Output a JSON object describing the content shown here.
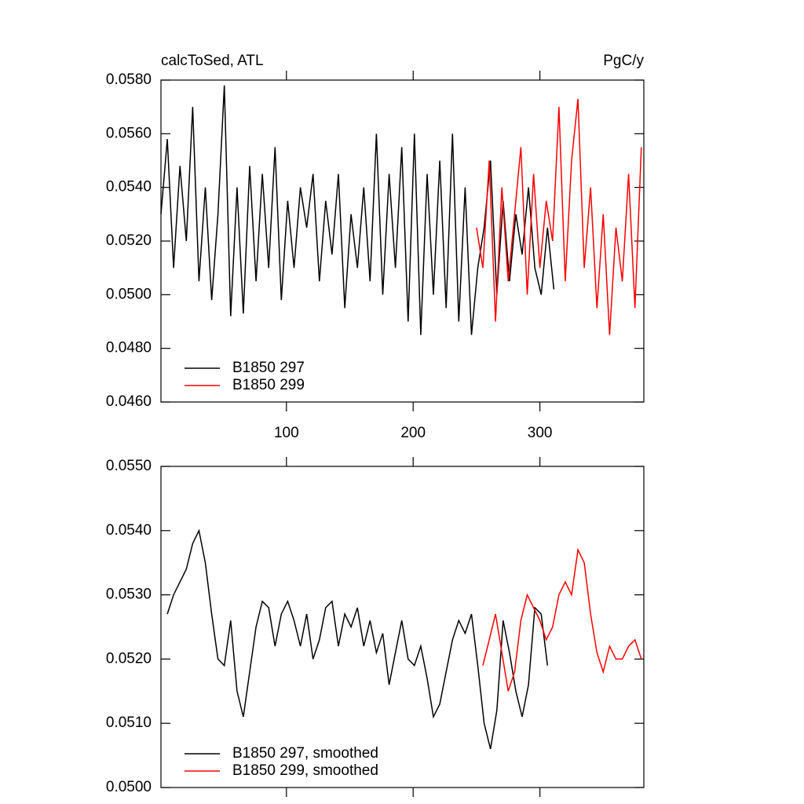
{
  "chart_data": [
    {
      "type": "line",
      "title": "calcToSed, ATL",
      "unit_label": "PgC/y",
      "xlim": [
        1,
        382
      ],
      "xticks": [
        100,
        200,
        300
      ],
      "show_xtick_labels": true,
      "ylim": [
        0.046,
        0.058
      ],
      "yticks": [
        {
          "value": 0.046,
          "label": "0.0460"
        },
        {
          "value": 0.048,
          "label": "0.0480"
        },
        {
          "value": 0.05,
          "label": "0.0500"
        },
        {
          "value": 0.052,
          "label": "0.0520"
        },
        {
          "value": 0.054,
          "label": "0.0540"
        },
        {
          "value": 0.056,
          "label": "0.0560"
        },
        {
          "value": 0.058,
          "label": "0.0580"
        }
      ],
      "legend": "lower left",
      "series": [
        {
          "name": "B1850 297",
          "color": "#000000",
          "x": [
            1,
            6,
            11,
            16,
            21,
            26,
            31,
            36,
            41,
            46,
            51,
            56,
            61,
            66,
            71,
            76,
            81,
            86,
            91,
            96,
            101,
            106,
            111,
            116,
            121,
            126,
            131,
            136,
            141,
            146,
            151,
            156,
            161,
            166,
            171,
            176,
            181,
            186,
            191,
            196,
            201,
            206,
            211,
            216,
            221,
            226,
            231,
            236,
            241,
            246,
            251,
            256,
            261,
            266,
            271,
            276,
            281,
            286,
            291,
            296,
            301,
            306,
            311
          ],
          "values": [
            0.053,
            0.0558,
            0.051,
            0.0548,
            0.052,
            0.057,
            0.0505,
            0.054,
            0.0498,
            0.053,
            0.0578,
            0.0492,
            0.054,
            0.0493,
            0.0548,
            0.0505,
            0.0545,
            0.051,
            0.0555,
            0.0498,
            0.0535,
            0.051,
            0.054,
            0.0525,
            0.0545,
            0.0505,
            0.0535,
            0.0515,
            0.0545,
            0.0495,
            0.053,
            0.051,
            0.054,
            0.0505,
            0.056,
            0.05,
            0.0545,
            0.051,
            0.0555,
            0.049,
            0.056,
            0.0485,
            0.0545,
            0.05,
            0.055,
            0.0495,
            0.056,
            0.049,
            0.054,
            0.0485,
            0.051,
            0.0525,
            0.055,
            0.05,
            0.0535,
            0.0505,
            0.053,
            0.0515,
            0.054,
            0.051,
            0.05,
            0.0525,
            0.0502
          ]
        },
        {
          "name": "B1850 299",
          "color": "#ff0000",
          "x": [
            250,
            255,
            260,
            265,
            270,
            275,
            280,
            285,
            290,
            295,
            300,
            305,
            310,
            315,
            320,
            325,
            330,
            335,
            340,
            345,
            350,
            355,
            360,
            365,
            370,
            375,
            380
          ],
          "values": [
            0.0525,
            0.051,
            0.055,
            0.049,
            0.054,
            0.0505,
            0.053,
            0.0555,
            0.05,
            0.0545,
            0.051,
            0.0535,
            0.052,
            0.057,
            0.0505,
            0.055,
            0.0573,
            0.051,
            0.054,
            0.0495,
            0.053,
            0.0485,
            0.0525,
            0.0505,
            0.0545,
            0.0495,
            0.0555
          ]
        }
      ]
    },
    {
      "type": "line",
      "xlim": [
        1,
        382
      ],
      "xticks": [
        100,
        200,
        300
      ],
      "show_xtick_labels": false,
      "ylim": [
        0.05,
        0.055
      ],
      "yticks": [
        {
          "value": 0.05,
          "label": "0.0500"
        },
        {
          "value": 0.051,
          "label": "0.0510"
        },
        {
          "value": 0.052,
          "label": "0.0520"
        },
        {
          "value": 0.053,
          "label": "0.0530"
        },
        {
          "value": 0.054,
          "label": "0.0540"
        },
        {
          "value": 0.055,
          "label": "0.0550"
        }
      ],
      "legend": "lower left",
      "series": [
        {
          "name": "B1850 297, smoothed",
          "color": "#000000",
          "x": [
            6,
            11,
            16,
            21,
            26,
            31,
            36,
            41,
            46,
            51,
            56,
            61,
            66,
            71,
            76,
            81,
            86,
            91,
            96,
            101,
            106,
            111,
            116,
            121,
            126,
            131,
            136,
            141,
            146,
            151,
            156,
            161,
            166,
            171,
            176,
            181,
            186,
            191,
            196,
            201,
            206,
            211,
            216,
            221,
            226,
            231,
            236,
            241,
            246,
            251,
            256,
            261,
            266,
            271,
            276,
            281,
            286,
            291,
            296,
            301,
            306
          ],
          "values": [
            0.0527,
            0.053,
            0.0532,
            0.0534,
            0.0538,
            0.054,
            0.0535,
            0.0527,
            0.052,
            0.0519,
            0.0526,
            0.0515,
            0.0511,
            0.0518,
            0.0525,
            0.0529,
            0.0528,
            0.0522,
            0.0527,
            0.0529,
            0.0526,
            0.0522,
            0.0527,
            0.052,
            0.0523,
            0.0528,
            0.0529,
            0.0522,
            0.0527,
            0.0525,
            0.0528,
            0.0522,
            0.0526,
            0.0521,
            0.0524,
            0.0516,
            0.0521,
            0.0526,
            0.052,
            0.0519,
            0.0522,
            0.0517,
            0.0511,
            0.0513,
            0.0518,
            0.0523,
            0.0526,
            0.0524,
            0.0527,
            0.0519,
            0.051,
            0.0506,
            0.0512,
            0.0526,
            0.0521,
            0.0515,
            0.0511,
            0.0516,
            0.0528,
            0.0527,
            0.0519
          ]
        },
        {
          "name": "B1850 299, smoothed",
          "color": "#ff0000",
          "x": [
            255,
            260,
            265,
            270,
            275,
            280,
            285,
            290,
            295,
            300,
            305,
            310,
            315,
            320,
            325,
            330,
            335,
            340,
            345,
            350,
            355,
            360,
            365,
            370,
            375,
            380
          ],
          "values": [
            0.0519,
            0.0523,
            0.0527,
            0.0521,
            0.0515,
            0.0518,
            0.0526,
            0.053,
            0.0528,
            0.0526,
            0.0523,
            0.0525,
            0.053,
            0.0532,
            0.053,
            0.0537,
            0.0535,
            0.0527,
            0.0521,
            0.0518,
            0.0522,
            0.052,
            0.052,
            0.0522,
            0.0523,
            0.052
          ]
        }
      ]
    }
  ]
}
